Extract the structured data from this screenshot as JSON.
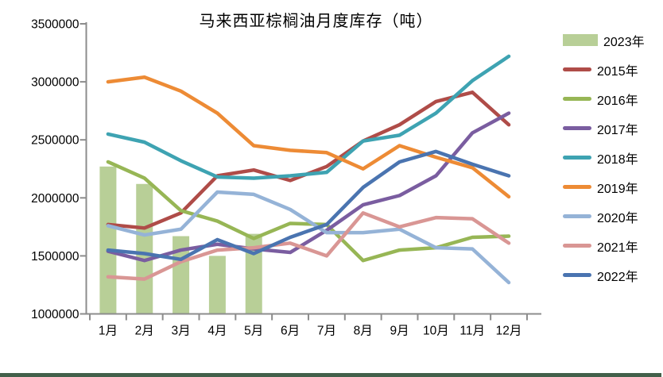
{
  "chart_data": {
    "type": "combo",
    "title": "马来西亚棕榈油月度库存（吨）",
    "xlabel": "",
    "ylabel": "",
    "categories": [
      "1月",
      "2月",
      "3月",
      "4月",
      "5月",
      "6月",
      "7月",
      "8月",
      "9月",
      "10月",
      "11月",
      "12月"
    ],
    "y_axis": {
      "min": 1000000,
      "max": 3500000,
      "tick_step": 500000,
      "ticks": [
        3500000,
        3000000,
        2500000,
        2000000,
        1500000,
        1000000
      ]
    },
    "grid": false,
    "legend_position": "right",
    "bar_series": {
      "name": "2023年",
      "color": "#b8cf97",
      "values": [
        2270000,
        2120000,
        1670000,
        1500000,
        1690000,
        null,
        null,
        null,
        null,
        null,
        null,
        null
      ]
    },
    "line_series": [
      {
        "name": "2015年",
        "color": "#af4c48",
        "values": [
          1770000,
          1740000,
          1870000,
          2190000,
          2240000,
          2150000,
          2270000,
          2490000,
          2630000,
          2830000,
          2910000,
          2630000
        ]
      },
      {
        "name": "2016年",
        "color": "#97b655",
        "values": [
          2310000,
          2170000,
          1890000,
          1800000,
          1650000,
          1780000,
          1770000,
          1460000,
          1550000,
          1570000,
          1660000,
          1670000
        ]
      },
      {
        "name": "2017年",
        "color": "#7a5da0",
        "values": [
          1540000,
          1460000,
          1550000,
          1600000,
          1560000,
          1530000,
          1720000,
          1940000,
          2020000,
          2190000,
          2560000,
          2730000
        ]
      },
      {
        "name": "2018年",
        "color": "#3ea3b2",
        "values": [
          2550000,
          2480000,
          2320000,
          2180000,
          2170000,
          2190000,
          2220000,
          2490000,
          2540000,
          2730000,
          3010000,
          3220000
        ]
      },
      {
        "name": "2019年",
        "color": "#ed8b35",
        "values": [
          3000000,
          3040000,
          2920000,
          2730000,
          2450000,
          2410000,
          2390000,
          2250000,
          2450000,
          2350000,
          2260000,
          2010000
        ]
      },
      {
        "name": "2020年",
        "color": "#95b3d7",
        "values": [
          1760000,
          1680000,
          1730000,
          2050000,
          2030000,
          1900000,
          1700000,
          1700000,
          1730000,
          1570000,
          1560000,
          1270000
        ]
      },
      {
        "name": "2021年",
        "color": "#d99694",
        "values": [
          1320000,
          1300000,
          1450000,
          1550000,
          1570000,
          1610000,
          1500000,
          1870000,
          1750000,
          1830000,
          1820000,
          1610000
        ]
      },
      {
        "name": "2022年",
        "color": "#4a74b0",
        "values": [
          1550000,
          1520000,
          1470000,
          1640000,
          1520000,
          1660000,
          1770000,
          2090000,
          2310000,
          2400000,
          2290000,
          2190000
        ]
      }
    ]
  }
}
